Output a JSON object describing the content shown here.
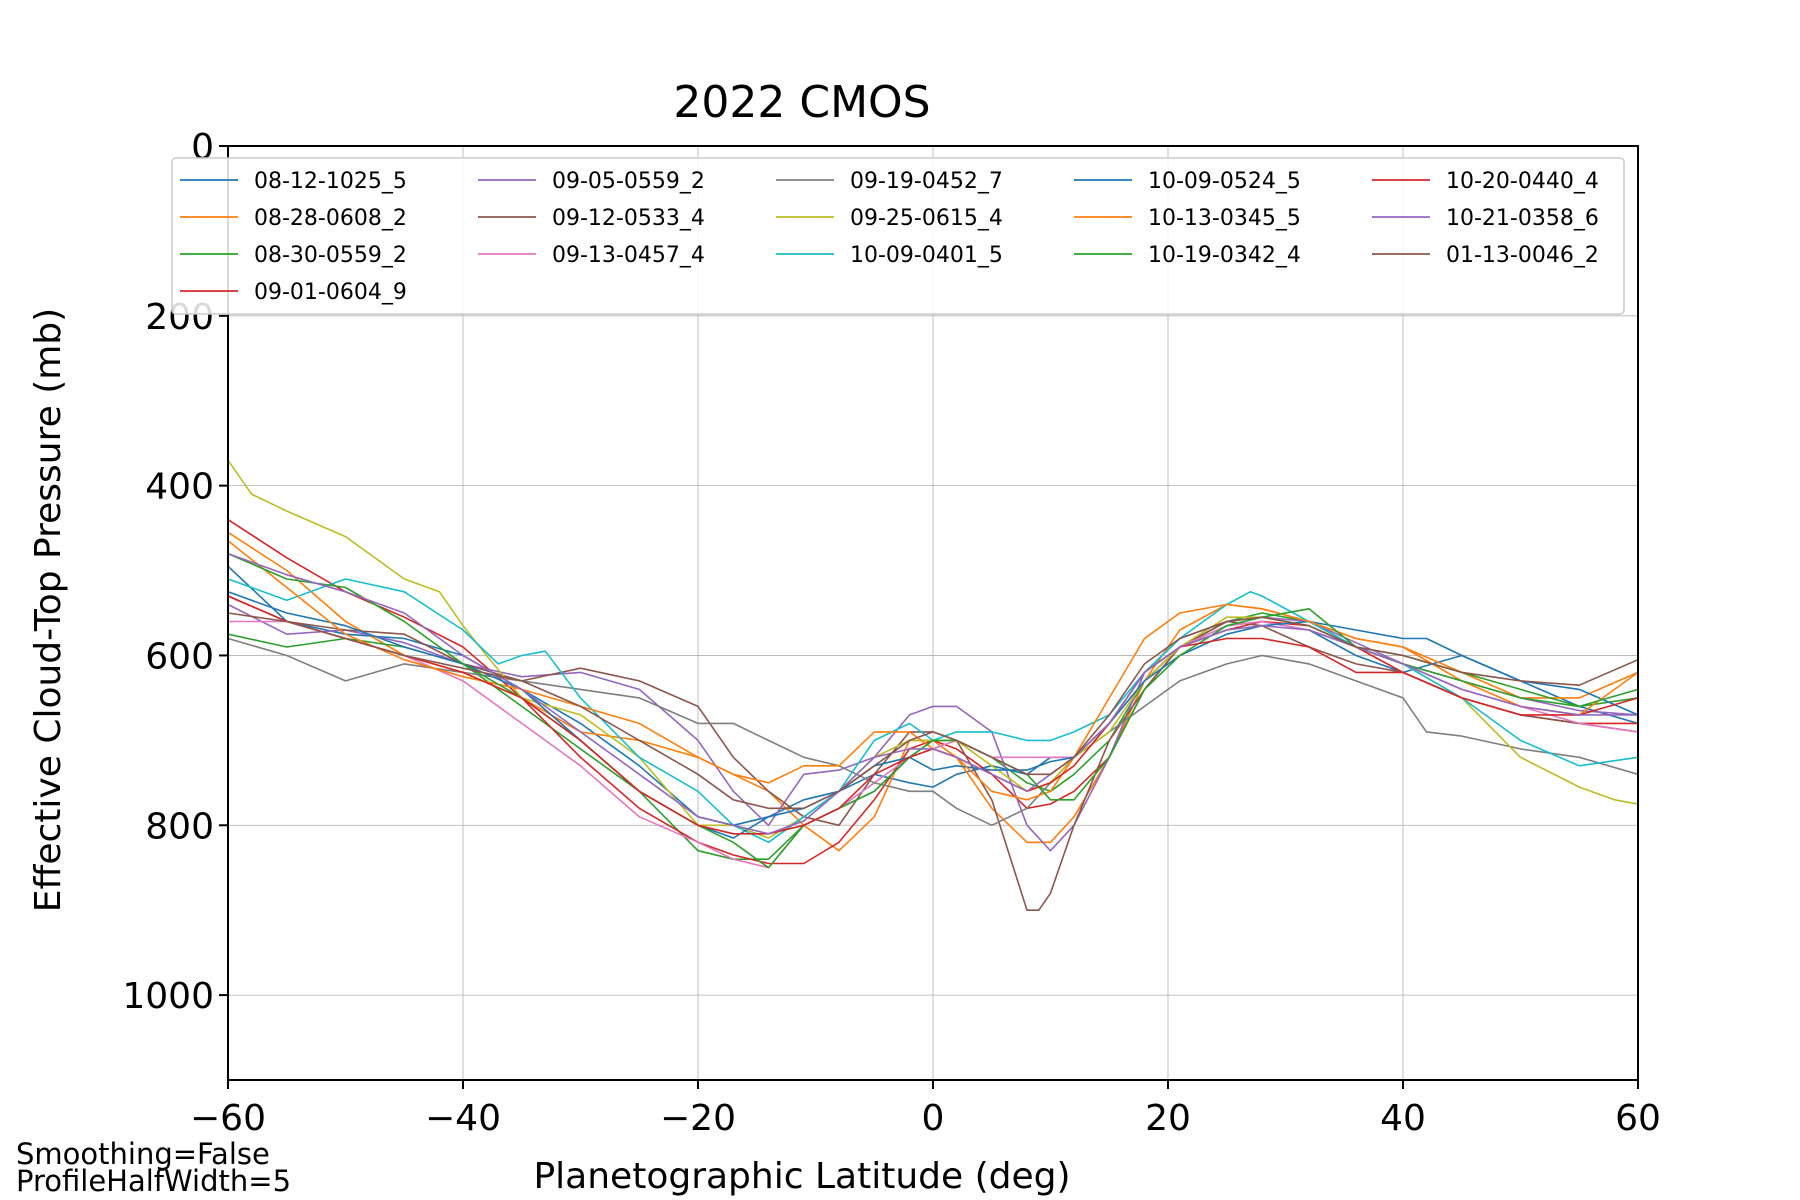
{
  "chart_data": {
    "type": "line",
    "title": "2022 CMOS",
    "xlabel": "Planetographic Latitude (deg)",
    "ylabel": "Effective Cloud-Top Pressure (mb)",
    "xlim": [
      -60,
      60
    ],
    "ylim": [
      1100,
      0
    ],
    "y_inverted": true,
    "xticks": [
      -60,
      -40,
      -20,
      0,
      20,
      40,
      60
    ],
    "xtick_labels": [
      "−60",
      "−40",
      "−20",
      "0",
      "20",
      "40",
      "60"
    ],
    "yticks": [
      0,
      200,
      400,
      600,
      800,
      1000
    ],
    "ytick_labels": [
      "0",
      "200",
      "400",
      "600",
      "800",
      "1000"
    ],
    "grid": true,
    "legend_position": "top",
    "series": [
      {
        "name": "08-12-1025_5",
        "color": "#1f77b4",
        "x": [
          -60,
          -55,
          -50,
          -45,
          -40,
          -35,
          -30,
          -25,
          -20,
          -17,
          -14,
          -11,
          -8,
          -5,
          -2,
          0,
          2,
          5,
          8,
          10,
          12,
          15,
          18,
          21,
          25,
          28,
          32,
          36,
          40,
          45,
          50,
          55,
          60
        ],
        "y": [
          495,
          560,
          575,
          580,
          600,
          640,
          680,
          730,
          790,
          800,
          790,
          770,
          760,
          740,
          750,
          755,
          740,
          730,
          740,
          720,
          720,
          680,
          620,
          590,
          565,
          560,
          570,
          600,
          620,
          600,
          630,
          660,
          680
        ]
      },
      {
        "name": "08-28-0608_2",
        "color": "#ff7f0e",
        "x": [
          -60,
          -55,
          -50,
          -45,
          -40,
          -35,
          -30,
          -25,
          -20,
          -17,
          -14,
          -11,
          -8,
          -5,
          -2,
          0,
          2,
          5,
          8,
          10,
          12,
          15,
          18,
          21,
          25,
          28,
          32,
          36,
          40,
          45,
          50,
          55,
          60
        ],
        "y": [
          455,
          500,
          560,
          600,
          620,
          650,
          690,
          700,
          720,
          740,
          760,
          800,
          830,
          790,
          700,
          700,
          720,
          780,
          820,
          820,
          790,
          720,
          630,
          570,
          540,
          545,
          560,
          580,
          590,
          620,
          650,
          650,
          620
        ]
      },
      {
        "name": "08-30-0559_2",
        "color": "#2ca02c",
        "x": [
          -60,
          -55,
          -50,
          -45,
          -40,
          -35,
          -30,
          -25,
          -20,
          -17,
          -14,
          -11,
          -8,
          -5,
          -2,
          0,
          2,
          5,
          8,
          10,
          12,
          15,
          18,
          21,
          25,
          28,
          32,
          36,
          40,
          45,
          50,
          55,
          60
        ],
        "y": [
          575,
          590,
          580,
          590,
          610,
          660,
          710,
          760,
          830,
          840,
          840,
          800,
          780,
          760,
          720,
          700,
          700,
          720,
          750,
          760,
          740,
          700,
          630,
          590,
          560,
          550,
          560,
          590,
          600,
          620,
          640,
          660,
          650
        ]
      },
      {
        "name": "09-01-0604_9",
        "color": "#d62728",
        "x": [
          -60,
          -55,
          -50,
          -45,
          -40,
          -35,
          -30,
          -25,
          -20,
          -17,
          -14,
          -11,
          -8,
          -5,
          -2,
          0,
          2,
          5,
          8,
          10,
          12,
          15,
          18,
          21,
          25,
          28,
          32,
          36,
          40,
          45,
          50,
          55,
          60
        ],
        "y": [
          440,
          485,
          525,
          555,
          590,
          650,
          720,
          780,
          820,
          835,
          845,
          845,
          820,
          770,
          710,
          700,
          710,
          740,
          780,
          775,
          760,
          720,
          640,
          590,
          570,
          560,
          565,
          590,
          620,
          650,
          670,
          680,
          680
        ]
      },
      {
        "name": "09-05-0559_2",
        "color": "#9467bd",
        "x": [
          -60,
          -55,
          -50,
          -45,
          -40,
          -35,
          -30,
          -25,
          -20,
          -17,
          -14,
          -11,
          -8,
          -5,
          -2,
          0,
          2,
          5,
          8,
          10,
          12,
          15,
          18,
          21,
          25,
          28,
          32,
          36,
          40,
          45,
          50,
          55,
          60
        ],
        "y": [
          540,
          575,
          570,
          585,
          610,
          625,
          620,
          640,
          700,
          760,
          800,
          740,
          735,
          720,
          670,
          660,
          660,
          690,
          800,
          830,
          800,
          720,
          620,
          580,
          560,
          555,
          560,
          585,
          610,
          630,
          650,
          665,
          670
        ]
      },
      {
        "name": "09-12-0533_4",
        "color": "#8c564b",
        "x": [
          -60,
          -55,
          -50,
          -45,
          -40,
          -35,
          -30,
          -25,
          -20,
          -17,
          -14,
          -11,
          -8,
          -5,
          -2,
          0,
          2,
          5,
          8,
          9,
          10,
          12,
          15,
          18,
          21,
          25,
          28,
          32,
          36,
          40,
          45,
          50,
          55,
          60
        ],
        "y": [
          530,
          560,
          570,
          575,
          610,
          630,
          615,
          630,
          660,
          720,
          760,
          790,
          800,
          740,
          690,
          690,
          700,
          770,
          900,
          900,
          880,
          800,
          700,
          640,
          590,
          560,
          565,
          590,
          610,
          620,
          650,
          670,
          680,
          690
        ]
      },
      {
        "name": "09-13-0457_4",
        "color": "#e377c2",
        "x": [
          -60,
          -55,
          -50,
          -45,
          -40,
          -35,
          -30,
          -25,
          -20,
          -17,
          -14,
          -11,
          -8,
          -5,
          -2,
          0,
          2,
          5,
          8,
          10,
          12,
          15,
          18,
          21,
          25,
          28,
          32,
          36,
          40,
          45,
          50,
          55,
          60
        ],
        "y": [
          560,
          560,
          580,
          600,
          630,
          680,
          730,
          790,
          820,
          840,
          850,
          800,
          780,
          750,
          720,
          710,
          700,
          720,
          720,
          720,
          720,
          680,
          630,
          590,
          565,
          560,
          570,
          590,
          610,
          640,
          660,
          680,
          690
        ]
      },
      {
        "name": "09-19-0452_7",
        "color": "#7f7f7f",
        "x": [
          -60,
          -55,
          -50,
          -45,
          -40,
          -35,
          -30,
          -25,
          -20,
          -17,
          -14,
          -11,
          -8,
          -5,
          -2,
          0,
          2,
          5,
          8,
          10,
          12,
          15,
          18,
          21,
          25,
          28,
          32,
          36,
          40,
          42,
          45,
          50,
          55,
          60
        ],
        "y": [
          580,
          600,
          630,
          610,
          620,
          630,
          640,
          650,
          680,
          680,
          700,
          720,
          730,
          750,
          760,
          760,
          780,
          800,
          780,
          750,
          720,
          690,
          660,
          630,
          610,
          600,
          610,
          630,
          650,
          690,
          695,
          710,
          720,
          740
        ]
      },
      {
        "name": "09-25-0615_4",
        "color": "#bcbd22",
        "x": [
          -60,
          -58,
          -55,
          -50,
          -45,
          -42,
          -40,
          -38,
          -35,
          -30,
          -25,
          -20,
          -17,
          -14,
          -11,
          -8,
          -5,
          -2,
          0,
          2,
          5,
          8,
          10,
          12,
          15,
          18,
          21,
          25,
          28,
          32,
          36,
          40,
          45,
          50,
          55,
          58,
          60
        ],
        "y": [
          370,
          410,
          430,
          460,
          510,
          525,
          565,
          600,
          650,
          670,
          720,
          800,
          800,
          815,
          790,
          760,
          720,
          700,
          700,
          700,
          730,
          760,
          750,
          720,
          690,
          630,
          590,
          555,
          555,
          565,
          590,
          610,
          650,
          720,
          755,
          770,
          775
        ]
      },
      {
        "name": "10-09-0401_5",
        "color": "#17becf",
        "x": [
          -60,
          -55,
          -50,
          -45,
          -40,
          -37,
          -35,
          -33,
          -30,
          -25,
          -20,
          -17,
          -14,
          -11,
          -8,
          -5,
          -2,
          0,
          2,
          5,
          8,
          10,
          12,
          15,
          18,
          21,
          25,
          27,
          28,
          32,
          36,
          40,
          45,
          50,
          55,
          60
        ],
        "y": [
          510,
          535,
          510,
          525,
          570,
          610,
          600,
          595,
          650,
          720,
          760,
          800,
          820,
          790,
          760,
          700,
          680,
          700,
          690,
          690,
          700,
          700,
          690,
          670,
          620,
          580,
          540,
          525,
          530,
          560,
          590,
          610,
          650,
          700,
          730,
          720
        ]
      },
      {
        "name": "10-09-0524_5",
        "color": "#1f77b4",
        "x": [
          -60,
          -55,
          -50,
          -45,
          -40,
          -35,
          -30,
          -25,
          -20,
          -17,
          -14,
          -11,
          -8,
          -5,
          -2,
          0,
          2,
          5,
          8,
          10,
          12,
          15,
          18,
          21,
          25,
          28,
          32,
          36,
          40,
          42,
          45,
          50,
          55,
          60
        ],
        "y": [
          525,
          550,
          565,
          590,
          610,
          640,
          700,
          760,
          800,
          815,
          790,
          780,
          760,
          730,
          720,
          735,
          730,
          735,
          735,
          725,
          720,
          680,
          630,
          600,
          575,
          565,
          560,
          570,
          580,
          580,
          600,
          630,
          640,
          670
        ]
      },
      {
        "name": "10-13-0345_5",
        "color": "#ff7f0e",
        "x": [
          -60,
          -55,
          -50,
          -45,
          -40,
          -35,
          -30,
          -25,
          -20,
          -17,
          -14,
          -11,
          -8,
          -5,
          -2,
          0,
          2,
          5,
          8,
          10,
          12,
          15,
          18,
          21,
          25,
          28,
          32,
          36,
          40,
          45,
          50,
          55,
          60
        ],
        "y": [
          465,
          520,
          575,
          605,
          625,
          640,
          660,
          680,
          720,
          740,
          750,
          730,
          730,
          690,
          690,
          710,
          720,
          760,
          770,
          760,
          720,
          650,
          580,
          550,
          540,
          545,
          560,
          580,
          590,
          630,
          660,
          670,
          620
        ]
      },
      {
        "name": "10-19-0342_4",
        "color": "#2ca02c",
        "x": [
          -60,
          -55,
          -50,
          -45,
          -40,
          -35,
          -30,
          -25,
          -20,
          -17,
          -14,
          -11,
          -8,
          -5,
          -2,
          0,
          2,
          5,
          8,
          10,
          12,
          15,
          18,
          21,
          25,
          28,
          32,
          36,
          40,
          45,
          50,
          55,
          60
        ],
        "y": [
          480,
          510,
          520,
          560,
          610,
          650,
          700,
          760,
          800,
          820,
          850,
          800,
          780,
          760,
          720,
          700,
          700,
          720,
          740,
          770,
          770,
          720,
          640,
          600,
          565,
          555,
          545,
          590,
          610,
          630,
          650,
          660,
          640
        ]
      },
      {
        "name": "10-20-0440_4",
        "color": "#d62728",
        "x": [
          -60,
          -55,
          -50,
          -45,
          -40,
          -35,
          -30,
          -25,
          -20,
          -17,
          -14,
          -11,
          -8,
          -5,
          -2,
          0,
          2,
          5,
          8,
          10,
          12,
          15,
          18,
          21,
          25,
          28,
          32,
          36,
          40,
          45,
          50,
          55,
          60
        ],
        "y": [
          530,
          560,
          580,
          600,
          620,
          650,
          700,
          760,
          800,
          810,
          810,
          800,
          780,
          740,
          720,
          710,
          720,
          740,
          760,
          750,
          730,
          680,
          620,
          590,
          580,
          580,
          590,
          620,
          620,
          650,
          670,
          670,
          650
        ]
      },
      {
        "name": "10-21-0358_6",
        "color": "#9467bd",
        "x": [
          -60,
          -55,
          -50,
          -45,
          -40,
          -35,
          -30,
          -25,
          -20,
          -17,
          -14,
          -11,
          -8,
          -5,
          -2,
          0,
          2,
          5,
          8,
          10,
          12,
          15,
          18,
          21,
          25,
          28,
          32,
          36,
          40,
          45,
          50,
          55,
          60
        ],
        "y": [
          480,
          505,
          525,
          550,
          600,
          640,
          690,
          740,
          790,
          800,
          810,
          795,
          760,
          720,
          710,
          710,
          720,
          740,
          760,
          740,
          720,
          680,
          620,
          590,
          570,
          565,
          570,
          590,
          610,
          640,
          660,
          670,
          670
        ]
      },
      {
        "name": "01-13-0046_2",
        "color": "#8c564b",
        "x": [
          -60,
          -55,
          -50,
          -45,
          -40,
          -35,
          -30,
          -25,
          -20,
          -17,
          -14,
          -11,
          -8,
          -5,
          -2,
          0,
          2,
          5,
          8,
          10,
          12,
          15,
          18,
          21,
          25,
          28,
          32,
          36,
          40,
          45,
          50,
          55,
          60
        ],
        "y": [
          550,
          560,
          580,
          600,
          615,
          630,
          660,
          700,
          740,
          770,
          780,
          780,
          760,
          730,
          700,
          690,
          700,
          720,
          740,
          740,
          720,
          670,
          610,
          580,
          560,
          555,
          565,
          590,
          600,
          620,
          630,
          635,
          605
        ]
      }
    ]
  },
  "annotations": {
    "line1": "Smoothing=False",
    "line2": "ProfileHalfWidth=5"
  }
}
